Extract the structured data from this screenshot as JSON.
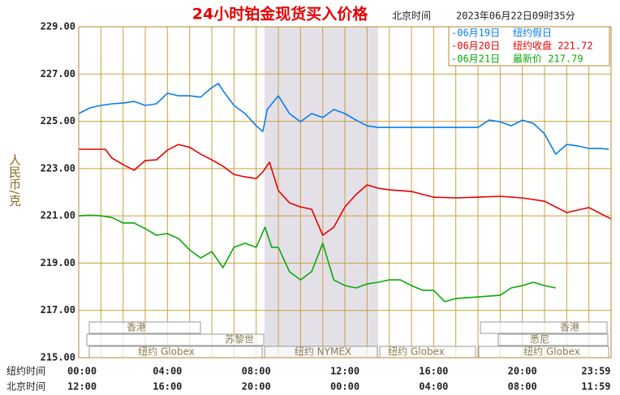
{
  "chart_data": {
    "type": "line",
    "title": "24小时铂金现货买入价格",
    "time_zone": "北京时间",
    "timestamp": "2023年06月22日09时35分",
    "y_label": "人民币/克",
    "x_row_labels": [
      "纽约时间",
      "北京时间"
    ],
    "xlim": [
      0,
      24
    ],
    "ylim": [
      215,
      229
    ],
    "yticks": [
      {
        "value": 215,
        "label": "215.00"
      },
      {
        "value": 217,
        "label": "217.00"
      },
      {
        "value": 219,
        "label": "219.00"
      },
      {
        "value": 221,
        "label": "221.00"
      },
      {
        "value": 223,
        "label": "223.00"
      },
      {
        "value": 225,
        "label": "225.00"
      },
      {
        "value": 227,
        "label": "227.00"
      },
      {
        "value": 229,
        "label": "229.00"
      }
    ],
    "xticks": [
      {
        "value": 0,
        "label": "00:00"
      },
      {
        "value": 4,
        "label": "04:00"
      },
      {
        "value": 8,
        "label": "08:00"
      },
      {
        "value": 12,
        "label": "12:00"
      },
      {
        "value": 16,
        "label": "16:00"
      },
      {
        "value": 20,
        "label": "20:00"
      },
      {
        "value": 23.983,
        "label": "23:59"
      }
    ],
    "xticks_beijing": [
      {
        "value": 0,
        "label": "12:00"
      },
      {
        "value": 4,
        "label": "16:00"
      },
      {
        "value": 8,
        "label": "20:00"
      },
      {
        "value": 12,
        "label": "00:00"
      },
      {
        "value": 16,
        "label": "04:00"
      },
      {
        "value": 20,
        "label": "08:00"
      },
      {
        "value": 23.983,
        "label": "11:59"
      }
    ],
    "xgrid": [
      0,
      1,
      2,
      3,
      4,
      5,
      6,
      7,
      8,
      9,
      10,
      11,
      12,
      13,
      14,
      15,
      16,
      17,
      18,
      19,
      20,
      21,
      22,
      23,
      24
    ],
    "grid": true,
    "sessions": [
      "香港",
      "苏黎世",
      "纽约 Globex",
      "纽约 NYMEX",
      "悉尼"
    ],
    "series": [
      {
        "name": "-06月19日",
        "note": "纽约假日",
        "color": "#0a7cf0",
        "x": [
          0,
          0.5,
          1,
          1.5,
          2,
          2.5,
          3,
          3.5,
          4,
          4.5,
          5,
          5.5,
          6,
          6.3,
          6.5,
          7,
          7.5,
          8,
          8.3,
          8.5,
          9,
          9.5,
          10,
          10.5,
          11,
          11.5,
          12,
          12.5,
          13,
          13.5,
          18,
          18.5,
          19,
          19.5,
          20,
          20.5,
          21,
          21.5,
          22,
          22.5,
          23,
          23.5,
          23.9
        ],
        "values": [
          225.33,
          225.57,
          225.67,
          225.74,
          225.77,
          225.84,
          225.67,
          225.74,
          226.19,
          226.08,
          226.08,
          226.02,
          226.43,
          226.6,
          226.3,
          225.67,
          225.33,
          224.81,
          224.57,
          225.5,
          226.08,
          225.33,
          224.98,
          225.33,
          225.16,
          225.5,
          225.33,
          225.05,
          224.81,
          224.74,
          224.74,
          225.05,
          224.98,
          224.81,
          225.05,
          224.91,
          224.47,
          223.61,
          224.02,
          223.96,
          223.85,
          223.85,
          223.82
        ]
      },
      {
        "name": "-06月20日",
        "note": "纽约收盘 221.72",
        "color": "#e60000",
        "x": [
          0,
          1,
          1.2,
          1.5,
          2,
          2.5,
          3,
          3.5,
          4,
          4.5,
          5,
          5.5,
          6,
          6.5,
          7,
          7.5,
          8,
          8.3,
          8.6,
          9,
          9.5,
          10,
          10.5,
          11,
          11.5,
          12,
          12.5,
          13,
          13.5,
          14,
          15,
          16,
          17,
          18,
          19,
          20,
          21,
          22,
          23,
          23.5,
          24
        ],
        "values": [
          223.82,
          223.82,
          223.82,
          223.44,
          223.17,
          222.93,
          223.34,
          223.37,
          223.78,
          224.02,
          223.9,
          223.61,
          223.37,
          223.1,
          222.75,
          222.65,
          222.58,
          222.86,
          223.27,
          222.07,
          221.55,
          221.38,
          221.28,
          220.18,
          220.52,
          221.38,
          221.9,
          222.31,
          222.17,
          222.1,
          222.03,
          221.79,
          221.76,
          221.79,
          221.83,
          221.76,
          221.62,
          221.14,
          221.35,
          221.11,
          220.87
        ]
      },
      {
        "name": "-06月21日",
        "note": "最新价 217.79",
        "color": "#0aa80a",
        "x": [
          0,
          0.5,
          1,
          1.5,
          2,
          2.5,
          3,
          3.5,
          4,
          4.5,
          5,
          5.5,
          6,
          6.5,
          7,
          7.5,
          8,
          8.4,
          8.7,
          9,
          9.5,
          10,
          10.5,
          11,
          11.5,
          12,
          12.5,
          13,
          13.5,
          14,
          14.5,
          15,
          15.5,
          16,
          16.5,
          17,
          18,
          19,
          19.5,
          20,
          20.5,
          21,
          21.5
        ],
        "values": [
          221.0,
          221.03,
          221.0,
          220.93,
          220.7,
          220.7,
          220.46,
          220.18,
          220.25,
          220.04,
          219.56,
          219.22,
          219.49,
          218.81,
          219.67,
          219.84,
          219.67,
          220.52,
          219.67,
          219.67,
          218.64,
          218.29,
          218.64,
          219.84,
          218.29,
          218.05,
          217.95,
          218.12,
          218.19,
          218.29,
          218.29,
          218.05,
          217.85,
          217.85,
          217.37,
          217.5,
          217.57,
          217.64,
          217.95,
          218.05,
          218.19,
          218.05,
          217.95
        ]
      }
    ]
  }
}
